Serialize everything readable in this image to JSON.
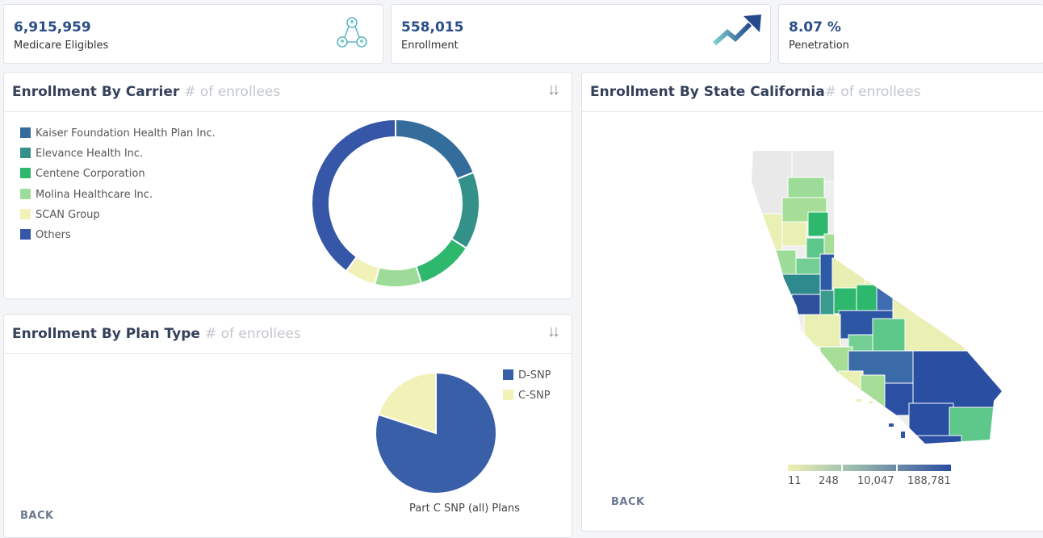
{
  "kpis": [
    {
      "value": "6,915,959",
      "label": "Medicare Eligibles",
      "icon": "people-network-icon"
    },
    {
      "value": "558,015",
      "label": "Enrollment",
      "icon": "trend-up-arrow-icon"
    },
    {
      "value": "8.07 %",
      "label": "Penetration"
    }
  ],
  "carrier_panel": {
    "title": "Enrollment By Carrier",
    "subtitle": "# of enrollees",
    "sort_icon": "sort-icon"
  },
  "plan_panel": {
    "title": "Enrollment By Plan Type",
    "subtitle": "# of enrollees",
    "sort_icon": "sort-icon",
    "back_label": "BACK",
    "caption": "Part C SNP (all) Plans"
  },
  "state_panel": {
    "title": "Enrollment By State California",
    "subtitle": "# of enrollees",
    "back_label": "BACK",
    "scale_labels": [
      "11",
      "248",
      "10,047",
      "188,781"
    ]
  },
  "chart_data": [
    {
      "type": "pie",
      "variant": "donut",
      "categories": [
        "Kaiser Foundation Health Plan Inc.",
        "Elevance Health Inc.",
        "Centene Corporation",
        "Molina Healthcare Inc.",
        "SCAN Group",
        "Others"
      ],
      "values": [
        19,
        15,
        11,
        9,
        6,
        40
      ],
      "colors": [
        "#346d9c",
        "#34918a",
        "#2db86d",
        "#9ddc98",
        "#f1f1b8",
        "#3657a8"
      ],
      "legend": "left"
    },
    {
      "type": "pie",
      "categories": [
        "D-SNP",
        "C-SNP"
      ],
      "values": [
        80,
        20
      ],
      "colors": [
        "#3a5fa9",
        "#f1f1b8"
      ],
      "legend": "top-right"
    }
  ]
}
